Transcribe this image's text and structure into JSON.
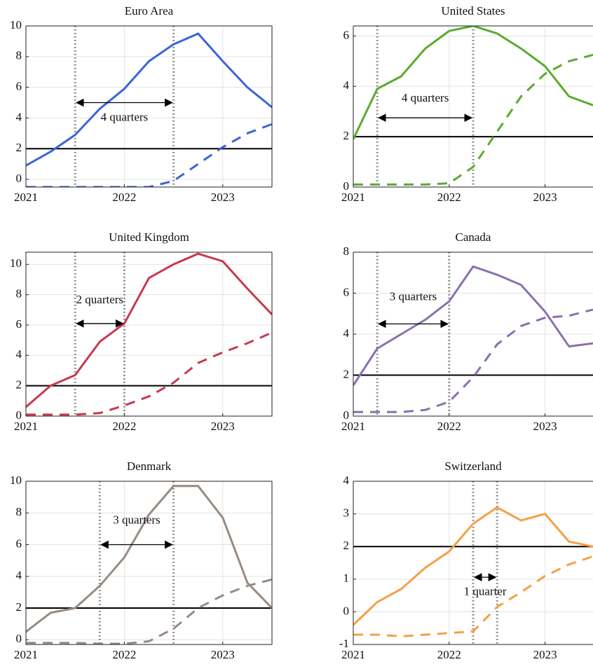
{
  "chart_data": [
    {
      "type": "line",
      "title": "Euro Area",
      "color": "#3a65d8",
      "x": [
        2021,
        2021.25,
        2021.5,
        2021.75,
        2022,
        2022.25,
        2022.5,
        2022.75,
        2023,
        2023.25,
        2023.5
      ],
      "series": [
        {
          "style": "solid",
          "values": [
            0.9,
            1.8,
            2.9,
            4.6,
            5.9,
            7.7,
            8.8,
            9.5,
            7.7,
            6.0,
            4.7
          ]
        },
        {
          "style": "dashed",
          "values": [
            -0.5,
            -0.5,
            -0.5,
            -0.5,
            -0.5,
            -0.5,
            -0.1,
            1.0,
            2.1,
            3.0,
            3.6
          ]
        }
      ],
      "xlim": [
        2021,
        2023.5
      ],
      "xticks": [
        2021,
        2022,
        2023
      ],
      "ylim": [
        -0.5,
        10
      ],
      "yticks": [
        0,
        2,
        4,
        6,
        8,
        10
      ],
      "grid": true,
      "hline": 2,
      "vlines": [
        2021.5,
        2022.5
      ],
      "annotation": {
        "text": "4 quarters",
        "x": [
          2021.5,
          2022.5
        ],
        "y": 5,
        "text_y": 4
      }
    },
    {
      "type": "line",
      "title": "United States",
      "color": "#5aab2e",
      "x": [
        2021,
        2021.25,
        2021.5,
        2021.75,
        2022,
        2022.25,
        2022.5,
        2022.75,
        2023,
        2023.25,
        2023.5
      ],
      "series": [
        {
          "style": "solid",
          "values": [
            1.9,
            3.9,
            4.4,
            5.5,
            6.2,
            6.4,
            6.1,
            5.5,
            4.8,
            3.6,
            3.25
          ]
        },
        {
          "style": "dashed",
          "values": [
            0.1,
            0.1,
            0.1,
            0.1,
            0.15,
            0.8,
            2.2,
            3.6,
            4.5,
            5.0,
            5.25
          ]
        }
      ],
      "xlim": [
        2021,
        2023.5
      ],
      "xticks": [
        2021,
        2022,
        2023
      ],
      "ylim": [
        0,
        6.4
      ],
      "yticks": [
        0,
        2,
        4,
        6
      ],
      "grid": true,
      "hline": 2,
      "vlines": [
        2021.25,
        2022.25
      ],
      "annotation": {
        "text": "4 quarters",
        "x": [
          2021.25,
          2022.25
        ],
        "y": 2.75,
        "text_y": 3.5
      }
    },
    {
      "type": "line",
      "title": "United Kingdom",
      "color": "#c8384f",
      "x": [
        2021,
        2021.25,
        2021.5,
        2021.75,
        2022,
        2022.25,
        2022.5,
        2022.75,
        2023,
        2023.25,
        2023.5
      ],
      "series": [
        {
          "style": "solid",
          "values": [
            0.6,
            2.0,
            2.7,
            4.9,
            6.1,
            9.1,
            10.0,
            10.7,
            10.2,
            8.4,
            6.7
          ]
        },
        {
          "style": "dashed",
          "values": [
            0.1,
            0.1,
            0.1,
            0.2,
            0.7,
            1.3,
            2.2,
            3.5,
            4.2,
            4.8,
            5.5
          ]
        }
      ],
      "xlim": [
        2021,
        2023.5
      ],
      "xticks": [
        2021,
        2022,
        2023
      ],
      "ylim": [
        0,
        10.8
      ],
      "yticks": [
        0,
        2,
        4,
        6,
        8,
        10
      ],
      "grid": true,
      "hline": 2,
      "vlines": [
        2021.5,
        2022
      ],
      "annotation": {
        "text": "2 quarters",
        "x": [
          2021.5,
          2022
        ],
        "y": 6.1,
        "text_y": 7.6
      }
    },
    {
      "type": "line",
      "title": "Canada",
      "color": "#8c6fb0",
      "x": [
        2021,
        2021.25,
        2021.5,
        2021.75,
        2022,
        2022.25,
        2022.5,
        2022.75,
        2023,
        2023.25,
        2023.5
      ],
      "series": [
        {
          "style": "solid",
          "values": [
            1.5,
            3.3,
            4.0,
            4.7,
            5.6,
            7.3,
            6.9,
            6.4,
            5.1,
            3.4,
            3.55
          ]
        },
        {
          "style": "dashed",
          "values": [
            0.2,
            0.2,
            0.2,
            0.3,
            0.7,
            1.9,
            3.5,
            4.4,
            4.8,
            4.9,
            5.2
          ]
        }
      ],
      "xlim": [
        2021,
        2023.5
      ],
      "xticks": [
        2021,
        2022,
        2023
      ],
      "ylim": [
        0,
        8
      ],
      "yticks": [
        0,
        2,
        4,
        6,
        8
      ],
      "grid": true,
      "hline": 2,
      "vlines": [
        2021.25,
        2022
      ],
      "annotation": {
        "text": "3 quarters",
        "x": [
          2021.25,
          2022
        ],
        "y": 4.5,
        "text_y": 5.8
      }
    },
    {
      "type": "line",
      "title": "Denmark",
      "color": "#9a8a80",
      "x": [
        2021,
        2021.25,
        2021.5,
        2021.75,
        2022,
        2022.25,
        2022.5,
        2022.75,
        2023,
        2023.25,
        2023.5
      ],
      "series": [
        {
          "style": "solid",
          "values": [
            0.5,
            1.7,
            2.0,
            3.4,
            5.2,
            7.9,
            9.7,
            9.7,
            7.7,
            3.6,
            2.0
          ]
        },
        {
          "style": "dashed",
          "values": [
            -0.2,
            -0.2,
            -0.2,
            -0.25,
            -0.25,
            -0.1,
            0.7,
            2.0,
            2.8,
            3.4,
            3.8
          ]
        }
      ],
      "xlim": [
        2021,
        2023.5
      ],
      "xticks": [
        2021,
        2022,
        2023
      ],
      "ylim": [
        -0.3,
        10
      ],
      "yticks": [
        0,
        2,
        4,
        6,
        8,
        10
      ],
      "grid": true,
      "hline": 2,
      "vlines": [
        2021.75,
        2022.5
      ],
      "annotation": {
        "text": "3 quarters",
        "x": [
          2021.75,
          2022.5
        ],
        "y": 6,
        "text_y": 7.5
      }
    },
    {
      "type": "line",
      "title": "Switzerland",
      "color": "#f5a042",
      "x": [
        2021,
        2021.25,
        2021.5,
        2021.75,
        2022,
        2022.25,
        2022.5,
        2022.75,
        2023,
        2023.25,
        2023.5
      ],
      "series": [
        {
          "style": "solid",
          "values": [
            -0.4,
            0.3,
            0.7,
            1.35,
            1.85,
            2.7,
            3.2,
            2.8,
            3.0,
            2.15,
            2.0
          ]
        },
        {
          "style": "dashed",
          "values": [
            -0.7,
            -0.7,
            -0.75,
            -0.7,
            -0.65,
            -0.6,
            0.15,
            0.6,
            1.1,
            1.45,
            1.7
          ]
        }
      ],
      "xlim": [
        2021,
        2023.5
      ],
      "xticks": [
        2021,
        2022,
        2023
      ],
      "ylim": [
        -1,
        4
      ],
      "yticks": [
        -1,
        0,
        1,
        2,
        3,
        4
      ],
      "grid": true,
      "hline": 2,
      "vlines": [
        2022.25,
        2022.5
      ],
      "annotation": {
        "text": "1 quarter",
        "x": [
          2022.25,
          2022.5
        ],
        "y": 1.06,
        "text_y": 0.6
      }
    }
  ]
}
